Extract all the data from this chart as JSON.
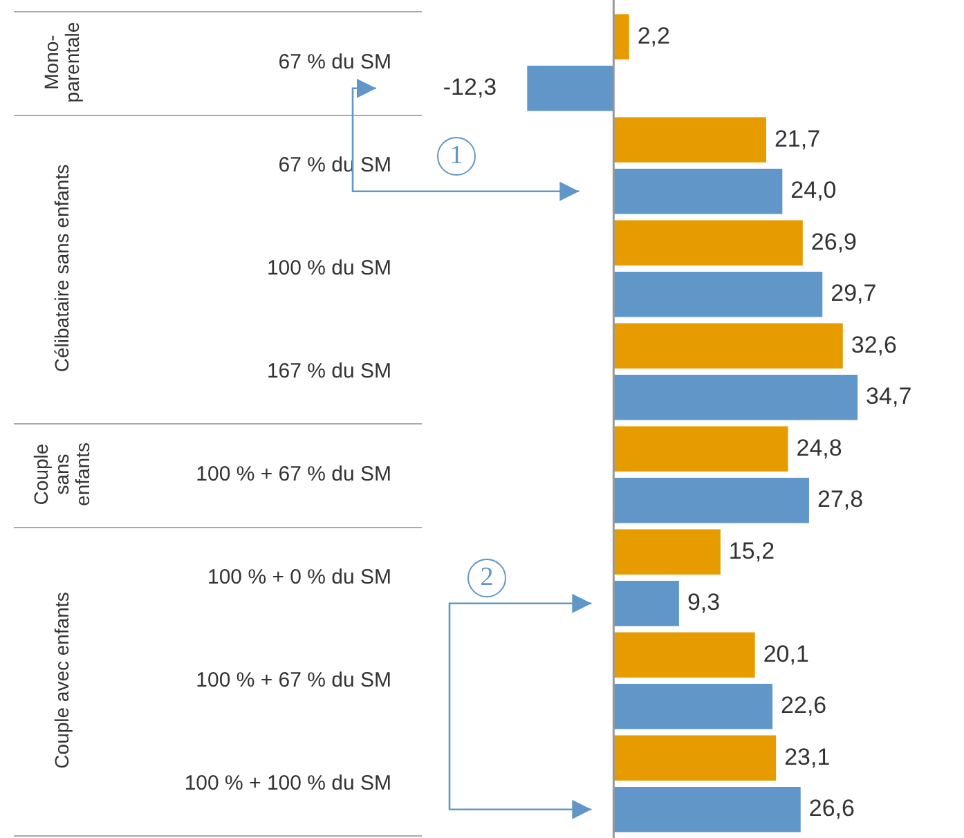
{
  "chart_data": {
    "type": "bar",
    "orientation": "horizontal",
    "categories": [
      "67 % du SM",
      "67 % du SM",
      "100 % du SM",
      "167 % du SM",
      "100 % + 67 % du SM",
      "100 % + 0 % du SM",
      "100 % + 67 % du SM",
      "100 % + 100 % du SM"
    ],
    "series": [
      {
        "color": "#e69c00",
        "values": [
          2.2,
          21.7,
          26.9,
          32.6,
          24.8,
          15.2,
          20.1,
          23.1
        ],
        "value_labels": [
          "2,2",
          "21,7",
          "26,9",
          "32,6",
          "24,8",
          "15,2",
          "20,1",
          "23,1"
        ]
      },
      {
        "color": "#6097c8",
        "values": [
          -12.3,
          24.0,
          29.7,
          34.7,
          27.8,
          9.3,
          22.6,
          26.6
        ],
        "value_labels": [
          "-12,3",
          "24,0",
          "29,7",
          "34,7",
          "27,8",
          "9,3",
          "22,6",
          "26,6"
        ]
      }
    ],
    "tick_labels": "y",
    "legend": false,
    "data_labels": true,
    "annotations": [
      "Mono-\nparentale",
      "Célibataire sans enfants",
      "Couple\nsans\nenfants",
      "Couple avec enfants",
      "1",
      "2"
    ]
  }
}
